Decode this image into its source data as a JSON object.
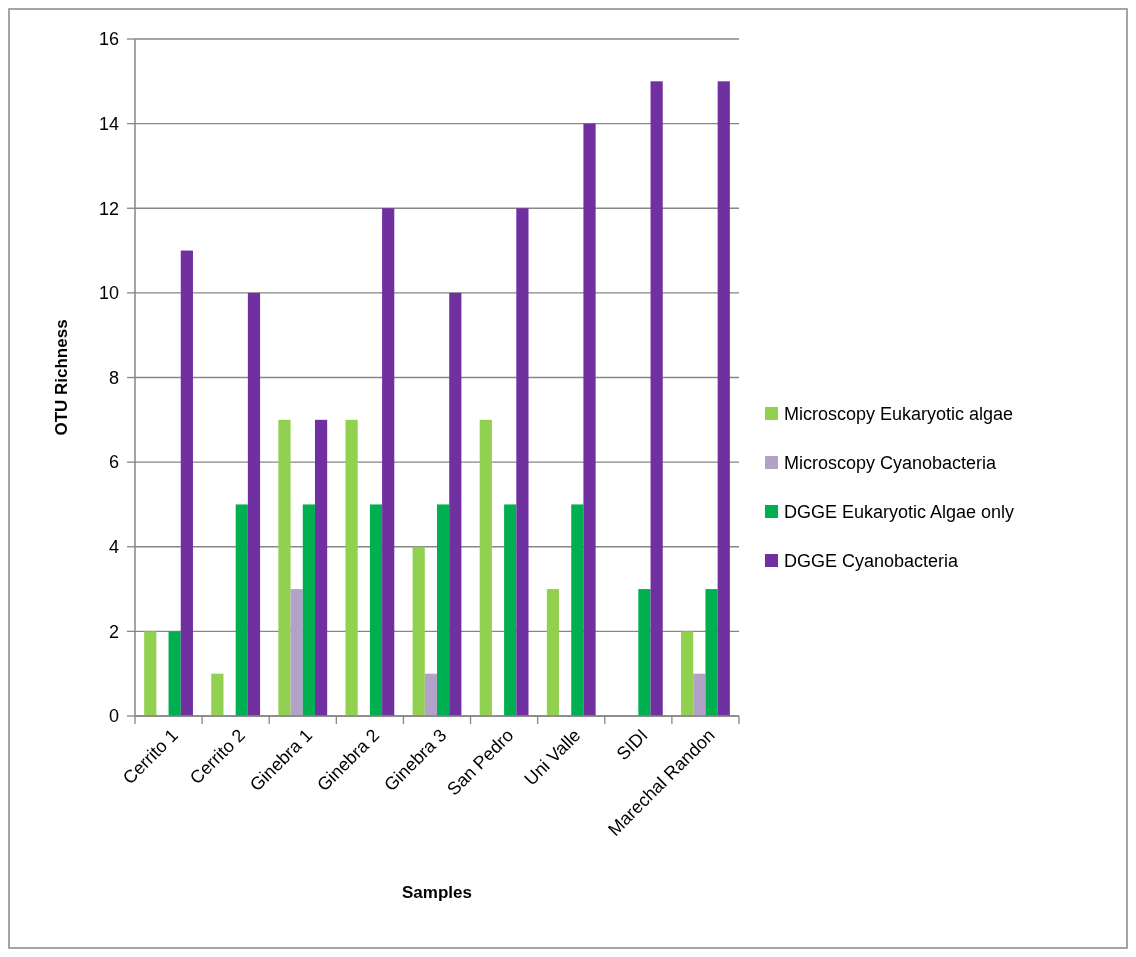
{
  "chart_data": {
    "type": "bar",
    "categories": [
      "Cerrito 1",
      "Cerrito 2",
      "Ginebra 1",
      "Ginebra 2",
      "Ginebra 3",
      "San Pedro",
      "Uni Valle",
      "SIDI",
      "Marechal Randon"
    ],
    "series": [
      {
        "name": "Microscopy Eukaryotic algae",
        "color": "#92d050",
        "values": [
          2,
          1,
          7,
          7,
          4,
          7,
          3,
          0,
          2
        ]
      },
      {
        "name": "Microscopy Cyanobacteria",
        "color": "#b3a2c7",
        "values": [
          0,
          0,
          3,
          0,
          1,
          0,
          0,
          0,
          1
        ]
      },
      {
        "name": "DGGE Eukaryotic Algae only",
        "color": "#00b050",
        "values": [
          2,
          5,
          5,
          5,
          5,
          5,
          5,
          3,
          3
        ]
      },
      {
        "name": "DGGE Cyanobacteria",
        "color": "#7030a0",
        "values": [
          11,
          10,
          7,
          12,
          10,
          12,
          14,
          15,
          15
        ]
      }
    ],
    "xlabel": "Samples",
    "ylabel": "OTU Richness",
    "ylim": [
      0,
      16
    ],
    "yticks": [
      0,
      2,
      4,
      6,
      8,
      10,
      12,
      14,
      16
    ],
    "grid": "y",
    "legend": "right"
  }
}
